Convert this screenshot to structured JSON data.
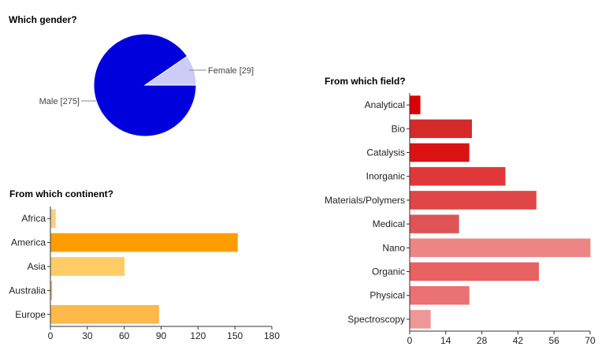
{
  "chart_data": [
    {
      "type": "pie",
      "title": "Which gender?",
      "slices": [
        {
          "label": "Male",
          "value": 275,
          "color": "#0000dd"
        },
        {
          "label": "Female",
          "value": 29,
          "color": "#ccccf4"
        }
      ],
      "slice_labels": [
        "Male [275]",
        "Female [29]"
      ]
    },
    {
      "type": "bar",
      "orientation": "horizontal",
      "title": "From which continent?",
      "categories": [
        "Africa",
        "America",
        "Asia",
        "Australia",
        "Europe"
      ],
      "values": [
        4,
        152,
        60,
        1,
        88
      ],
      "colors": [
        "#ffcc80",
        "#ff9d00",
        "#ffcc66",
        "#ffb74d",
        "#ffb84a"
      ],
      "xlim": [
        0,
        180
      ],
      "xticks": [
        "0",
        "30",
        "60",
        "90",
        "120",
        "150",
        "180"
      ]
    },
    {
      "type": "bar",
      "orientation": "horizontal",
      "title": "From which field?",
      "categories": [
        "Analytical",
        "Bio",
        "Catalysis",
        "Inorganic",
        "Materials/Polymers",
        "Medical",
        "Nano",
        "Organic",
        "Physical",
        "Spectroscopy"
      ],
      "values": [
        4,
        24,
        23,
        37,
        49,
        19,
        70,
        50,
        23,
        8
      ],
      "colors": [
        "#dd0000",
        "#d42a2a",
        "#dc1212",
        "#e03838",
        "#e04545",
        "#df5454",
        "#ee8585",
        "#e86262",
        "#ea7272",
        "#ee9797"
      ],
      "xlim": [
        0,
        70
      ],
      "xticks": [
        "0",
        "14",
        "28",
        "42",
        "56",
        "70"
      ]
    }
  ]
}
